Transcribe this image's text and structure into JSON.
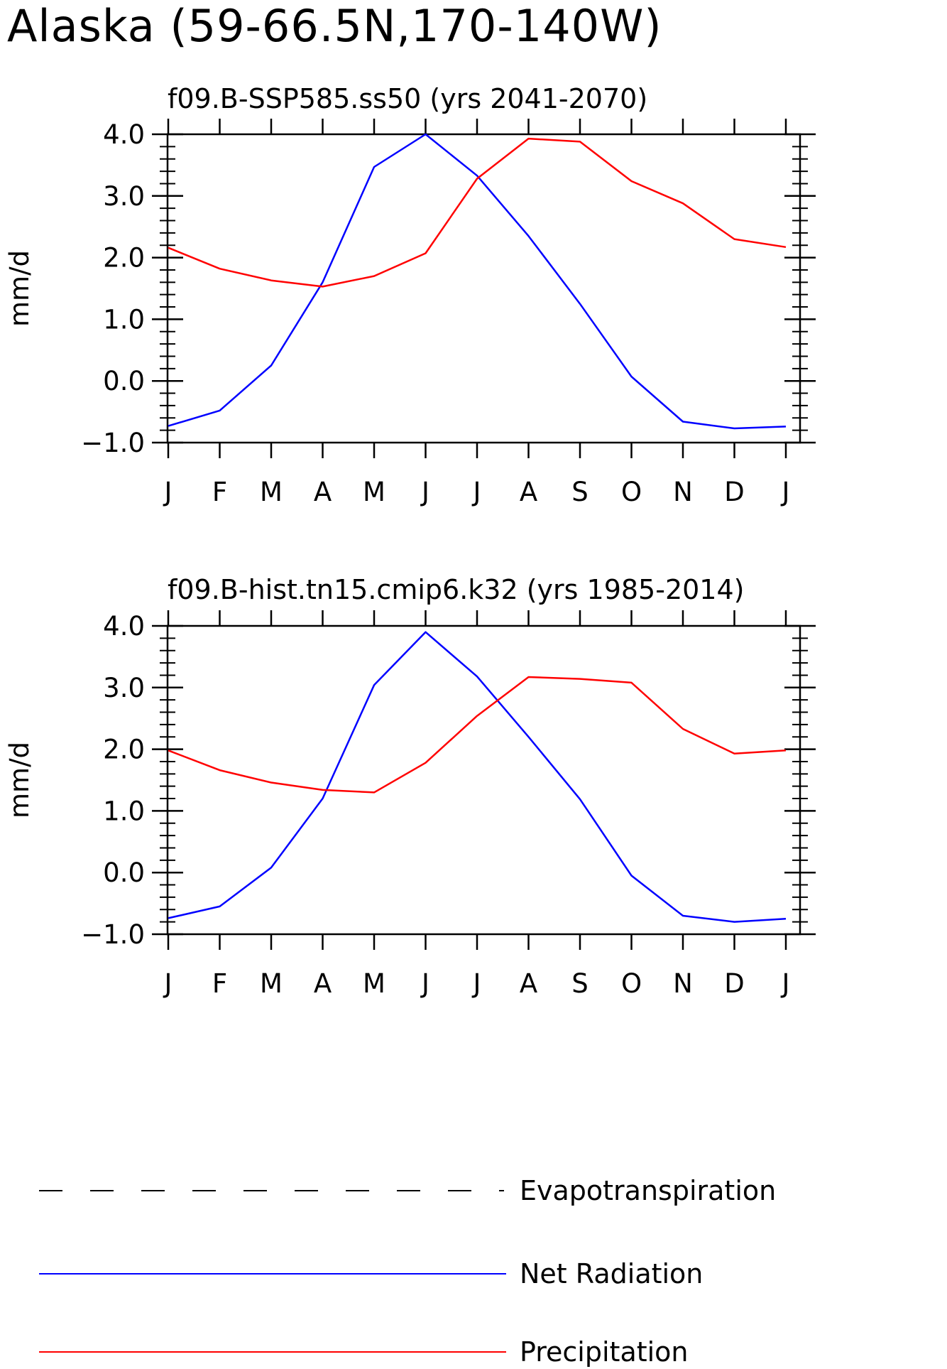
{
  "figure_title": "Alaska (59-66.5N,170-140W)",
  "colors": {
    "net_radiation": "#0000ff",
    "precipitation": "#ff0000",
    "evapotranspiration": "#000000",
    "axes": "#000000"
  },
  "legend": {
    "items": [
      {
        "label": "Evapotranspiration",
        "color": "#000000",
        "style": "dashed"
      },
      {
        "label": "Net Radiation",
        "color": "#0000ff",
        "style": "solid"
      },
      {
        "label": "Precipitation",
        "color": "#ff0000",
        "style": "solid"
      }
    ]
  },
  "chart_data": [
    {
      "type": "line",
      "title": "f09.B-SSP585.ss50 (yrs 2041-2070)",
      "ylabel": "mm/d",
      "xlabel": "",
      "categories": [
        "J",
        "F",
        "M",
        "A",
        "M",
        "J",
        "J",
        "A",
        "S",
        "O",
        "N",
        "D",
        "J"
      ],
      "ylim": [
        -1.0,
        4.0
      ],
      "yticks": [
        "-1.0",
        "0.0",
        "1.0",
        "2.0",
        "3.0",
        "4.0"
      ],
      "grid": false,
      "series": [
        {
          "name": "Net Radiation",
          "color": "#0000ff",
          "values": [
            -0.73,
            -0.48,
            0.25,
            1.6,
            3.47,
            4.0,
            3.33,
            2.35,
            1.25,
            0.07,
            -0.66,
            -0.77,
            -0.74
          ]
        },
        {
          "name": "Precipitation",
          "color": "#ff0000",
          "values": [
            2.16,
            1.82,
            1.63,
            1.53,
            1.7,
            2.07,
            3.28,
            3.93,
            3.88,
            3.24,
            2.88,
            2.3,
            2.17
          ]
        }
      ]
    },
    {
      "type": "line",
      "title": "f09.B-hist.tn15.cmip6.k32 (yrs 1985-2014)",
      "ylabel": "mm/d",
      "xlabel": "",
      "categories": [
        "J",
        "F",
        "M",
        "A",
        "M",
        "J",
        "J",
        "A",
        "S",
        "O",
        "N",
        "D",
        "J"
      ],
      "ylim": [
        -1.0,
        4.0
      ],
      "yticks": [
        "-1.0",
        "0.0",
        "1.0",
        "2.0",
        "3.0",
        "4.0"
      ],
      "grid": false,
      "series": [
        {
          "name": "Net Radiation",
          "color": "#0000ff",
          "values": [
            -0.74,
            -0.55,
            0.08,
            1.2,
            3.04,
            3.9,
            3.18,
            2.2,
            1.19,
            -0.05,
            -0.7,
            -0.8,
            -0.75
          ]
        },
        {
          "name": "Precipitation",
          "color": "#ff0000",
          "values": [
            1.98,
            1.66,
            1.46,
            1.34,
            1.3,
            1.78,
            2.54,
            3.17,
            3.14,
            3.08,
            2.33,
            1.93,
            1.98
          ]
        }
      ]
    }
  ]
}
